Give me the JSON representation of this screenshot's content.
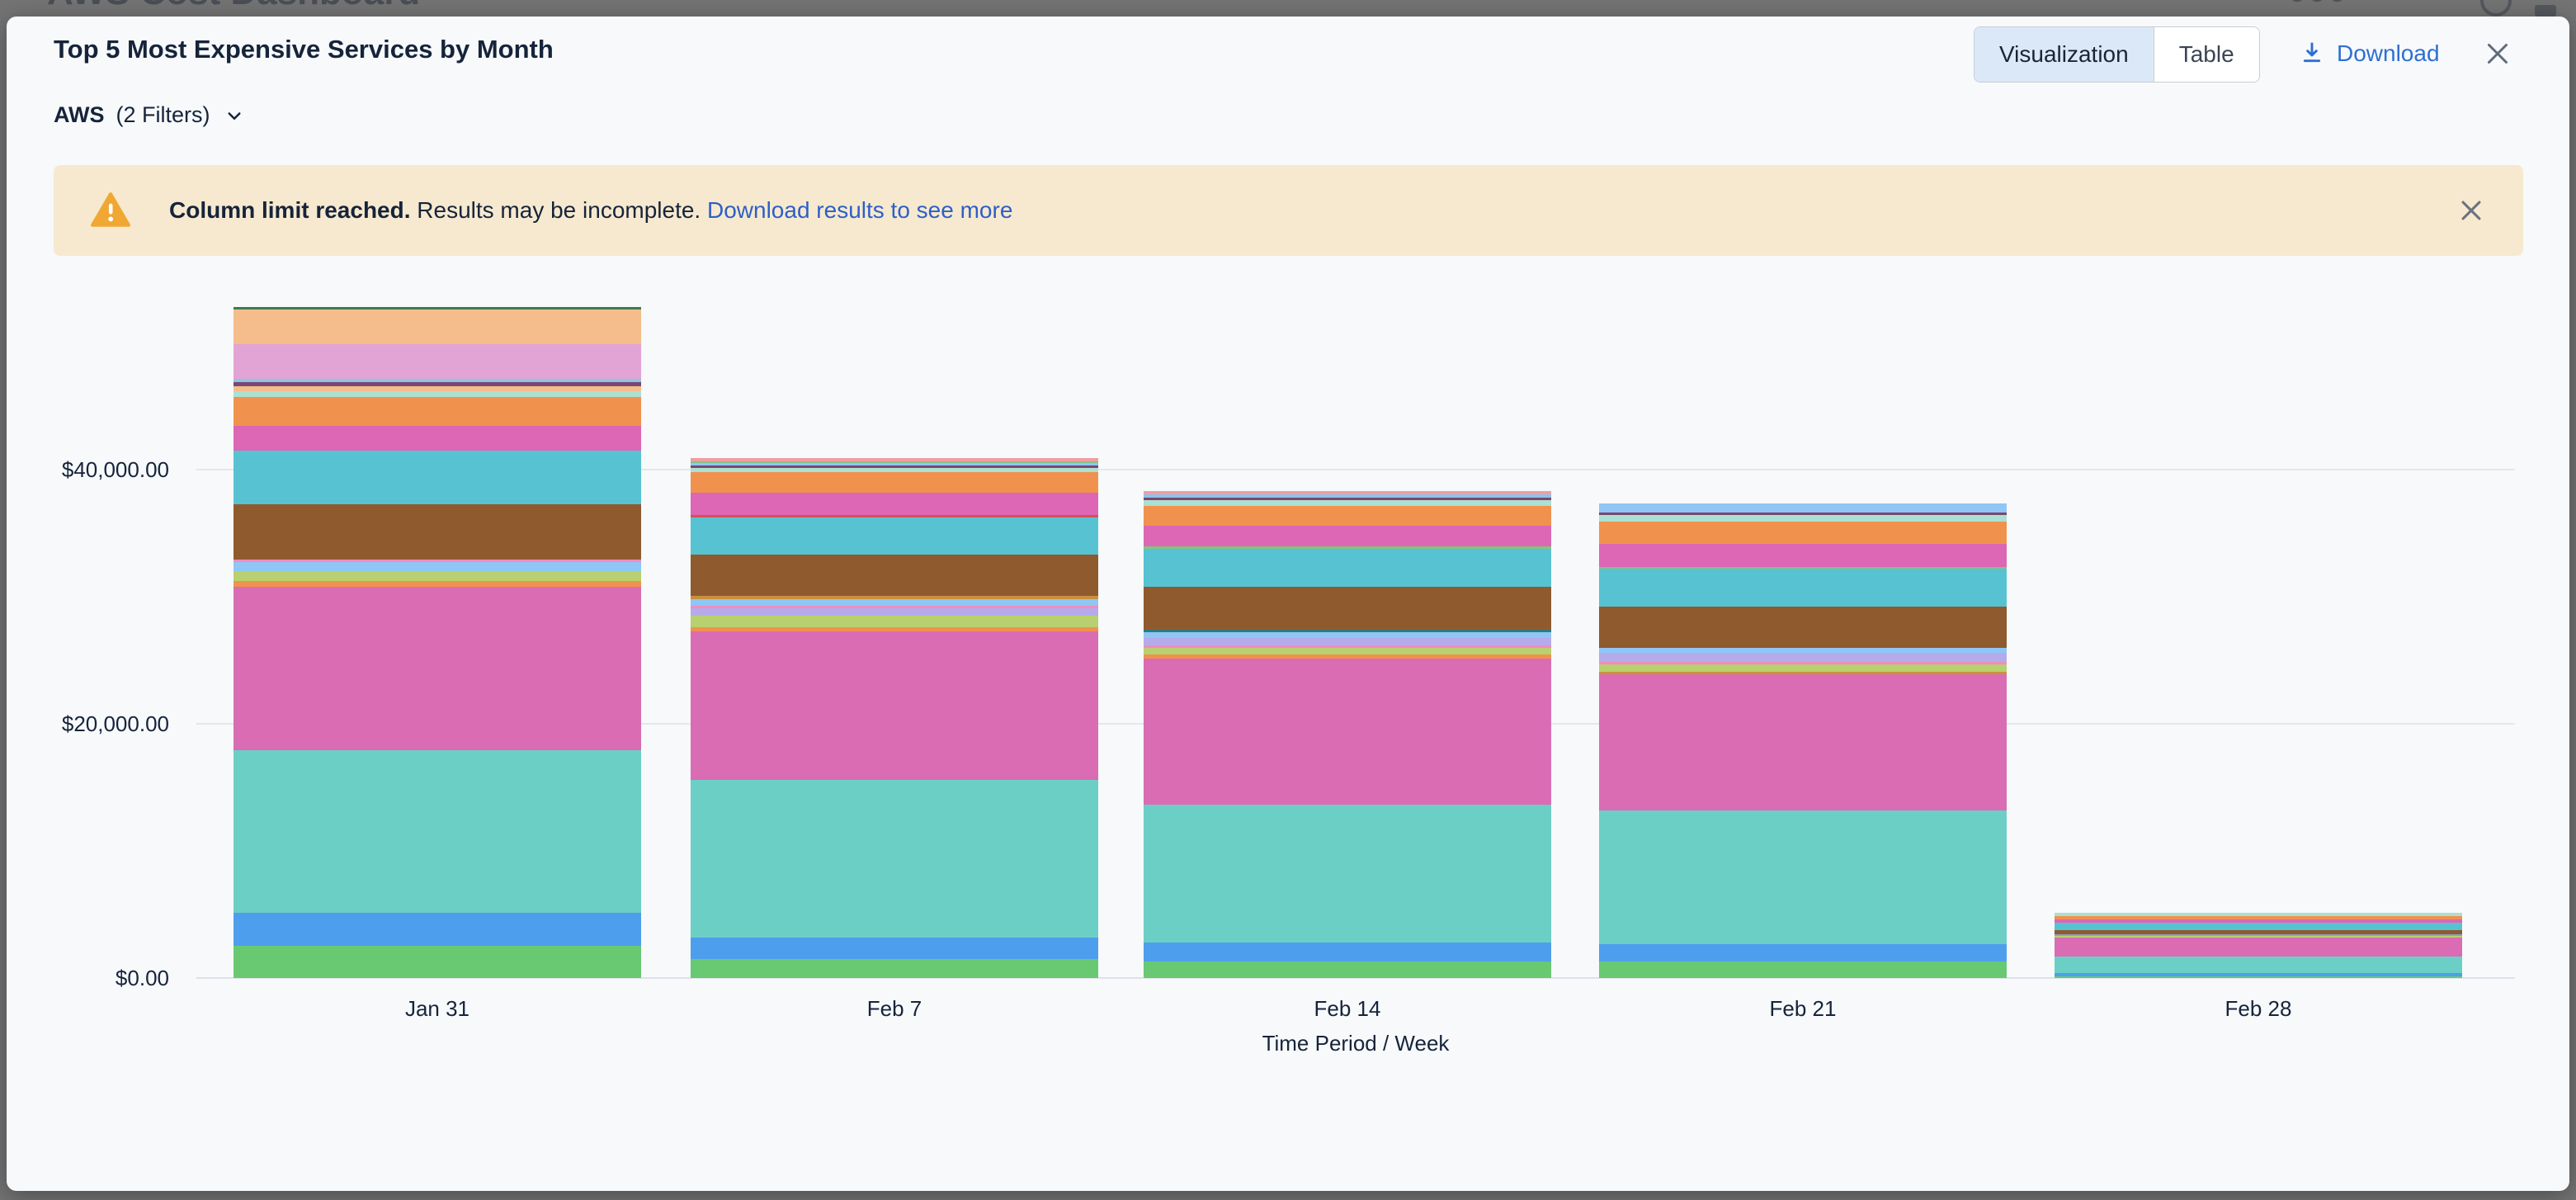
{
  "background_page": {
    "title": "AWS Cost Dashboard"
  },
  "modal": {
    "title": "Top 5 Most Expensive Services by Month",
    "view_toggle": {
      "options": [
        "Visualization",
        "Table"
      ],
      "selected": "Visualization"
    },
    "download_label": "Download",
    "filter": {
      "source": "AWS",
      "filters_label": "(2 Filters)"
    },
    "banner": {
      "bold": "Column limit reached.",
      "text": " Results may be incomplete. ",
      "link": "Download results to see more"
    },
    "icons": [
      "download-icon",
      "close-icon",
      "chevron-down-icon",
      "warning-triangle-icon",
      "dismiss-icon"
    ],
    "accent_colors": {
      "link_blue": "#2d5fc7",
      "download_blue": "#2e6fd3",
      "selected_tab_bg": "#dbe8f7",
      "banner_bg": "#f6e9cf",
      "warning_orange": "#f0a733"
    }
  },
  "chart_data": {
    "type": "stacked-bar",
    "title": "Top 5 Most Expensive Services by Month",
    "xlabel": "Time Period / Week",
    "ylabel": "",
    "grid": true,
    "legend_visible": false,
    "yticks": [
      {
        "label": "$0.00",
        "value": 0
      },
      {
        "label": "$20,000.00",
        "value": 20000
      },
      {
        "label": "$40,000.00",
        "value": 40000
      }
    ],
    "ylim": [
      0,
      53000
    ],
    "categories": [
      "Jan 31",
      "Feb 7",
      "Feb 14",
      "Feb 21",
      "Feb 28"
    ],
    "bars": [
      {
        "label": "Jan 31",
        "total": 52780,
        "segments_top_to_bottom": [
          {
            "c": "#417a4e",
            "v": 195
          },
          {
            "c": "#f5bd8c",
            "v": 2730
          },
          {
            "c": "#e2a4d4",
            "v": 2730
          },
          {
            "c": "#8cc4e9",
            "v": 260
          },
          {
            "c": "#7a486f",
            "v": 325
          },
          {
            "c": "#f5bd8c",
            "v": 390
          },
          {
            "c": "#abe0d2",
            "v": 455
          },
          {
            "c": "#f0924e",
            "v": 2275
          },
          {
            "c": "#dd66b5",
            "v": 1950
          },
          {
            "c": "#57c3d2",
            "v": 4225
          },
          {
            "c": "#8f5a2e",
            "v": 4355
          },
          {
            "c": "#f08cc0",
            "v": 195
          },
          {
            "c": "#8fc6f5",
            "v": 715
          },
          {
            "c": "#b8d06f",
            "v": 780
          },
          {
            "c": "#f0924e",
            "v": 455
          },
          {
            "c": "#d96cb3",
            "v": 12805
          },
          {
            "c": "#6ccfc6",
            "v": 12805
          },
          {
            "c": "#4d9fee",
            "v": 2600
          },
          {
            "c": "#68c972",
            "v": 2535
          }
        ]
      },
      {
        "label": "Feb 7",
        "total": 40885,
        "segments_top_to_bottom": [
          {
            "c": "#f19da6",
            "v": 260
          },
          {
            "c": "#85c383",
            "v": 130
          },
          {
            "c": "#8fc6f5",
            "v": 195
          },
          {
            "c": "#7a486f",
            "v": 195
          },
          {
            "c": "#abe0d2",
            "v": 325
          },
          {
            "c": "#f0924e",
            "v": 1625
          },
          {
            "c": "#dd66b5",
            "v": 1755
          },
          {
            "c": "#d94f52",
            "v": 195
          },
          {
            "c": "#57c3d2",
            "v": 2925
          },
          {
            "c": "#8f5a2e",
            "v": 3250
          },
          {
            "c": "#c9913d",
            "v": 260
          },
          {
            "c": "#8fc6f5",
            "v": 520
          },
          {
            "c": "#f08cc0",
            "v": 195
          },
          {
            "c": "#b6abea",
            "v": 585
          },
          {
            "c": "#b8d06f",
            "v": 910
          },
          {
            "c": "#f0924e",
            "v": 325
          },
          {
            "c": "#d96cb3",
            "v": 11635
          },
          {
            "c": "#6ccfc6",
            "v": 12415
          },
          {
            "c": "#4d9fee",
            "v": 1690
          },
          {
            "c": "#68c972",
            "v": 1495
          }
        ]
      },
      {
        "label": "Feb 14",
        "total": 38285,
        "segments_top_to_bottom": [
          {
            "c": "#f19da6",
            "v": 260
          },
          {
            "c": "#8cc4e9",
            "v": 260
          },
          {
            "c": "#7a486f",
            "v": 195
          },
          {
            "c": "#abe0d2",
            "v": 455
          },
          {
            "c": "#f0924e",
            "v": 1560
          },
          {
            "c": "#dd66b5",
            "v": 1625
          },
          {
            "c": "#85c383",
            "v": 195
          },
          {
            "c": "#57c3d2",
            "v": 2990
          },
          {
            "c": "#8f5a2e",
            "v": 3315
          },
          {
            "c": "#2f7b80",
            "v": 195
          },
          {
            "c": "#8fc6f5",
            "v": 455
          },
          {
            "c": "#b6abea",
            "v": 585
          },
          {
            "c": "#f08cc0",
            "v": 195
          },
          {
            "c": "#b8d06f",
            "v": 520
          },
          {
            "c": "#f0924e",
            "v": 325
          },
          {
            "c": "#d96cb3",
            "v": 11505
          },
          {
            "c": "#6ccfc6",
            "v": 10855
          },
          {
            "c": "#4d9fee",
            "v": 1495
          },
          {
            "c": "#68c972",
            "v": 1300
          }
        ]
      },
      {
        "label": "Feb 21",
        "total": 37310,
        "segments_top_to_bottom": [
          {
            "c": "#8fc6f5",
            "v": 700
          },
          {
            "c": "#7a486f",
            "v": 195
          },
          {
            "c": "#abe0d2",
            "v": 505
          },
          {
            "c": "#f0924e",
            "v": 1740
          },
          {
            "c": "#dd66b5",
            "v": 1820
          },
          {
            "c": "#85c383",
            "v": 170
          },
          {
            "c": "#57c3d2",
            "v": 2950
          },
          {
            "c": "#8f5a2e",
            "v": 3230
          },
          {
            "c": "#8fc6f5",
            "v": 420
          },
          {
            "c": "#b6abea",
            "v": 700
          },
          {
            "c": "#f08cc0",
            "v": 230
          },
          {
            "c": "#b8d06f",
            "v": 565
          },
          {
            "c": "#c9913d",
            "v": 230
          },
          {
            "c": "#d96cb3",
            "v": 10660
          },
          {
            "c": "#6ccfc6",
            "v": 10575
          },
          {
            "c": "#4d9fee",
            "v": 1350
          },
          {
            "c": "#68c972",
            "v": 1270
          }
        ]
      },
      {
        "label": "Feb 28",
        "total": 5135,
        "segments_top_to_bottom": [
          {
            "c": "#abe0d2",
            "v": 260
          },
          {
            "c": "#f0924e",
            "v": 260
          },
          {
            "c": "#dd66b5",
            "v": 260
          },
          {
            "c": "#57c3d2",
            "v": 585
          },
          {
            "c": "#8f5a2e",
            "v": 325
          },
          {
            "c": "#8fa0bf",
            "v": 130
          },
          {
            "c": "#b8d06f",
            "v": 130
          },
          {
            "c": "#d96cb3",
            "v": 1495
          },
          {
            "c": "#6ccfc6",
            "v": 1300
          },
          {
            "c": "#4d9fee",
            "v": 260
          },
          {
            "c": "#68c972",
            "v": 130
          }
        ]
      }
    ]
  }
}
